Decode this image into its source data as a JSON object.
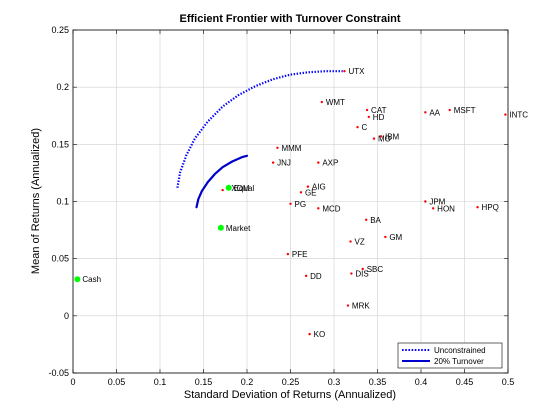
{
  "chart_data": {
    "type": "scatter",
    "title": "Efficient Frontier with Turnover Constraint",
    "xlabel": "Standard Deviation of Returns (Annualized)",
    "ylabel": "Mean of Returns (Annualized)",
    "xlim": [
      0,
      0.5
    ],
    "ylim": [
      -0.05,
      0.25
    ],
    "xticks": [
      "0",
      "0.05",
      "0.1",
      "0.15",
      "0.2",
      "0.25",
      "0.3",
      "0.35",
      "0.4",
      "0.45",
      "0.5"
    ],
    "yticks": [
      "-0.05",
      "0",
      "0.05",
      "0.1",
      "0.15",
      "0.2",
      "0.25"
    ],
    "grid": true,
    "legend_position": "bottom-right",
    "colors": {
      "unconstrained": "#0000ff",
      "turnover": "#0000cc",
      "asset_marker": "#ff0000",
      "highlight_marker": "#00ff00"
    },
    "series": [
      {
        "name": "Unconstrained",
        "style": "dotted",
        "points": [
          [
            0.12,
            0.112
          ],
          [
            0.123,
            0.125
          ],
          [
            0.13,
            0.14
          ],
          [
            0.14,
            0.155
          ],
          [
            0.155,
            0.17
          ],
          [
            0.172,
            0.183
          ],
          [
            0.19,
            0.193
          ],
          [
            0.21,
            0.201
          ],
          [
            0.23,
            0.207
          ],
          [
            0.25,
            0.211
          ],
          [
            0.27,
            0.213
          ],
          [
            0.29,
            0.214
          ],
          [
            0.31,
            0.214
          ]
        ]
      },
      {
        "name": "20% Turnover",
        "style": "solid",
        "points": [
          [
            0.142,
            0.095
          ],
          [
            0.144,
            0.102
          ],
          [
            0.148,
            0.109
          ],
          [
            0.155,
            0.117
          ],
          [
            0.163,
            0.124
          ],
          [
            0.172,
            0.13
          ],
          [
            0.183,
            0.135
          ],
          [
            0.195,
            0.139
          ],
          [
            0.2,
            0.14
          ]
        ]
      }
    ],
    "assets": [
      {
        "name": "UTX",
        "x": 0.312,
        "y": 0.214
      },
      {
        "name": "WMT",
        "x": 0.286,
        "y": 0.187
      },
      {
        "name": "CAT",
        "x": 0.338,
        "y": 0.18
      },
      {
        "name": "HD",
        "x": 0.34,
        "y": 0.174
      },
      {
        "name": "C",
        "x": 0.327,
        "y": 0.165
      },
      {
        "name": "IBM",
        "x": 0.354,
        "y": 0.157
      },
      {
        "name": "MO",
        "x": 0.346,
        "y": 0.155
      },
      {
        "name": "AA",
        "x": 0.405,
        "y": 0.178
      },
      {
        "name": "MSFT",
        "x": 0.433,
        "y": 0.18
      },
      {
        "name": "INTC",
        "x": 0.497,
        "y": 0.176
      },
      {
        "name": "MMM",
        "x": 0.235,
        "y": 0.147
      },
      {
        "name": "JNJ",
        "x": 0.23,
        "y": 0.134
      },
      {
        "name": "AXP",
        "x": 0.282,
        "y": 0.134
      },
      {
        "name": "AIG",
        "x": 0.27,
        "y": 0.113
      },
      {
        "name": "GE",
        "x": 0.262,
        "y": 0.108
      },
      {
        "name": "PG",
        "x": 0.25,
        "y": 0.098
      },
      {
        "name": "MCD",
        "x": 0.282,
        "y": 0.094
      },
      {
        "name": "BA",
        "x": 0.337,
        "y": 0.084
      },
      {
        "name": "JPM",
        "x": 0.405,
        "y": 0.1
      },
      {
        "name": "HON",
        "x": 0.414,
        "y": 0.094
      },
      {
        "name": "HPQ",
        "x": 0.465,
        "y": 0.095
      },
      {
        "name": "GM",
        "x": 0.359,
        "y": 0.069
      },
      {
        "name": "VZ",
        "x": 0.319,
        "y": 0.065
      },
      {
        "name": "PFE",
        "x": 0.247,
        "y": 0.054
      },
      {
        "name": "DD",
        "x": 0.268,
        "y": 0.035
      },
      {
        "name": "SBC",
        "x": 0.333,
        "y": 0.041
      },
      {
        "name": "DIS",
        "x": 0.32,
        "y": 0.037
      },
      {
        "name": "MRK",
        "x": 0.316,
        "y": 0.009
      },
      {
        "name": "KO",
        "x": 0.272,
        "y": -0.016
      }
    ],
    "highlights": [
      {
        "name": "Equal",
        "x": 0.179,
        "y": 0.112
      },
      {
        "name": "Market",
        "x": 0.17,
        "y": 0.077
      },
      {
        "name": "Cash",
        "x": 0.005,
        "y": 0.032
      }
    ],
    "extra_points": [
      {
        "name": "",
        "x": 0.172,
        "y": 0.11
      }
    ],
    "overlap_label": {
      "text": "XOM",
      "x": 0.182,
      "y": 0.112
    }
  }
}
